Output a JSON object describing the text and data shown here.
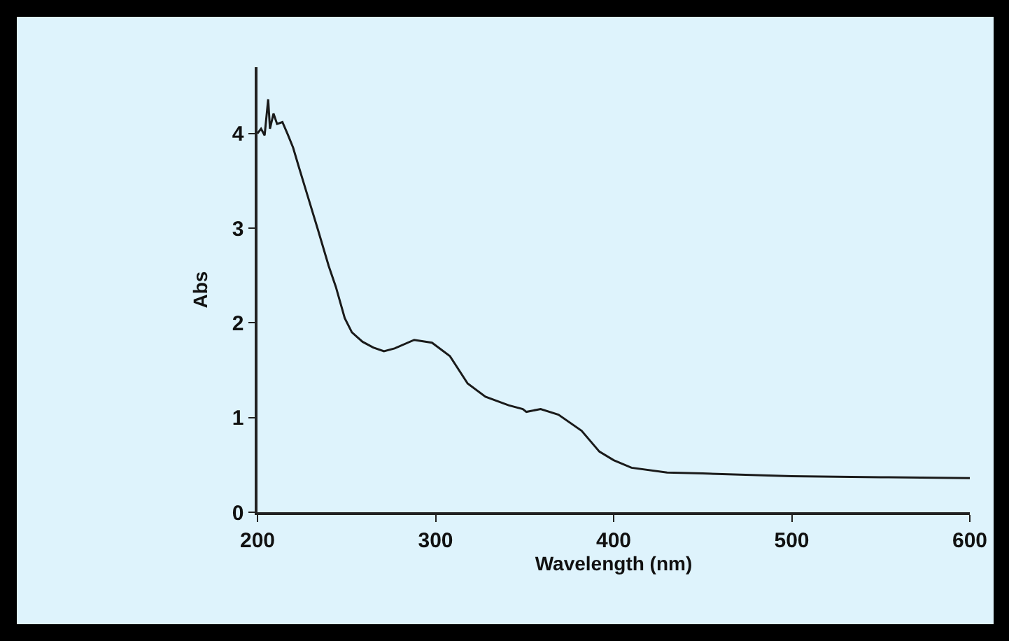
{
  "chart_data": {
    "type": "line",
    "xlabel": "Wavelength (nm)",
    "ylabel": "Abs",
    "x": [
      200,
      202,
      204,
      206,
      207,
      209,
      211,
      214,
      217,
      220,
      223,
      228,
      234,
      240,
      244,
      249,
      253,
      259,
      265,
      271,
      277,
      288,
      298,
      308,
      318,
      328,
      341,
      349,
      351,
      359,
      369,
      382,
      392,
      400,
      410,
      430,
      450,
      500,
      550,
      600
    ],
    "series": [
      {
        "color": "#1a1a1a",
        "values": [
          4.0,
          4.05,
          3.98,
          4.36,
          4.05,
          4.21,
          4.1,
          4.12,
          3.99,
          3.85,
          3.66,
          3.35,
          2.98,
          2.6,
          2.38,
          2.05,
          1.9,
          1.8,
          1.74,
          1.7,
          1.73,
          1.82,
          1.79,
          1.65,
          1.36,
          1.22,
          1.13,
          1.09,
          1.06,
          1.09,
          1.03,
          0.86,
          0.64,
          0.55,
          0.47,
          0.42,
          0.41,
          0.38,
          0.37,
          0.36
        ]
      }
    ],
    "xlim": [
      200,
      600
    ],
    "xticks": [
      200,
      300,
      400,
      500,
      600
    ],
    "ylim": [
      0,
      4.7
    ],
    "yticks": [
      0,
      1,
      2,
      3,
      4
    ],
    "grid": false,
    "marker": "none",
    "line_style": "solid"
  }
}
